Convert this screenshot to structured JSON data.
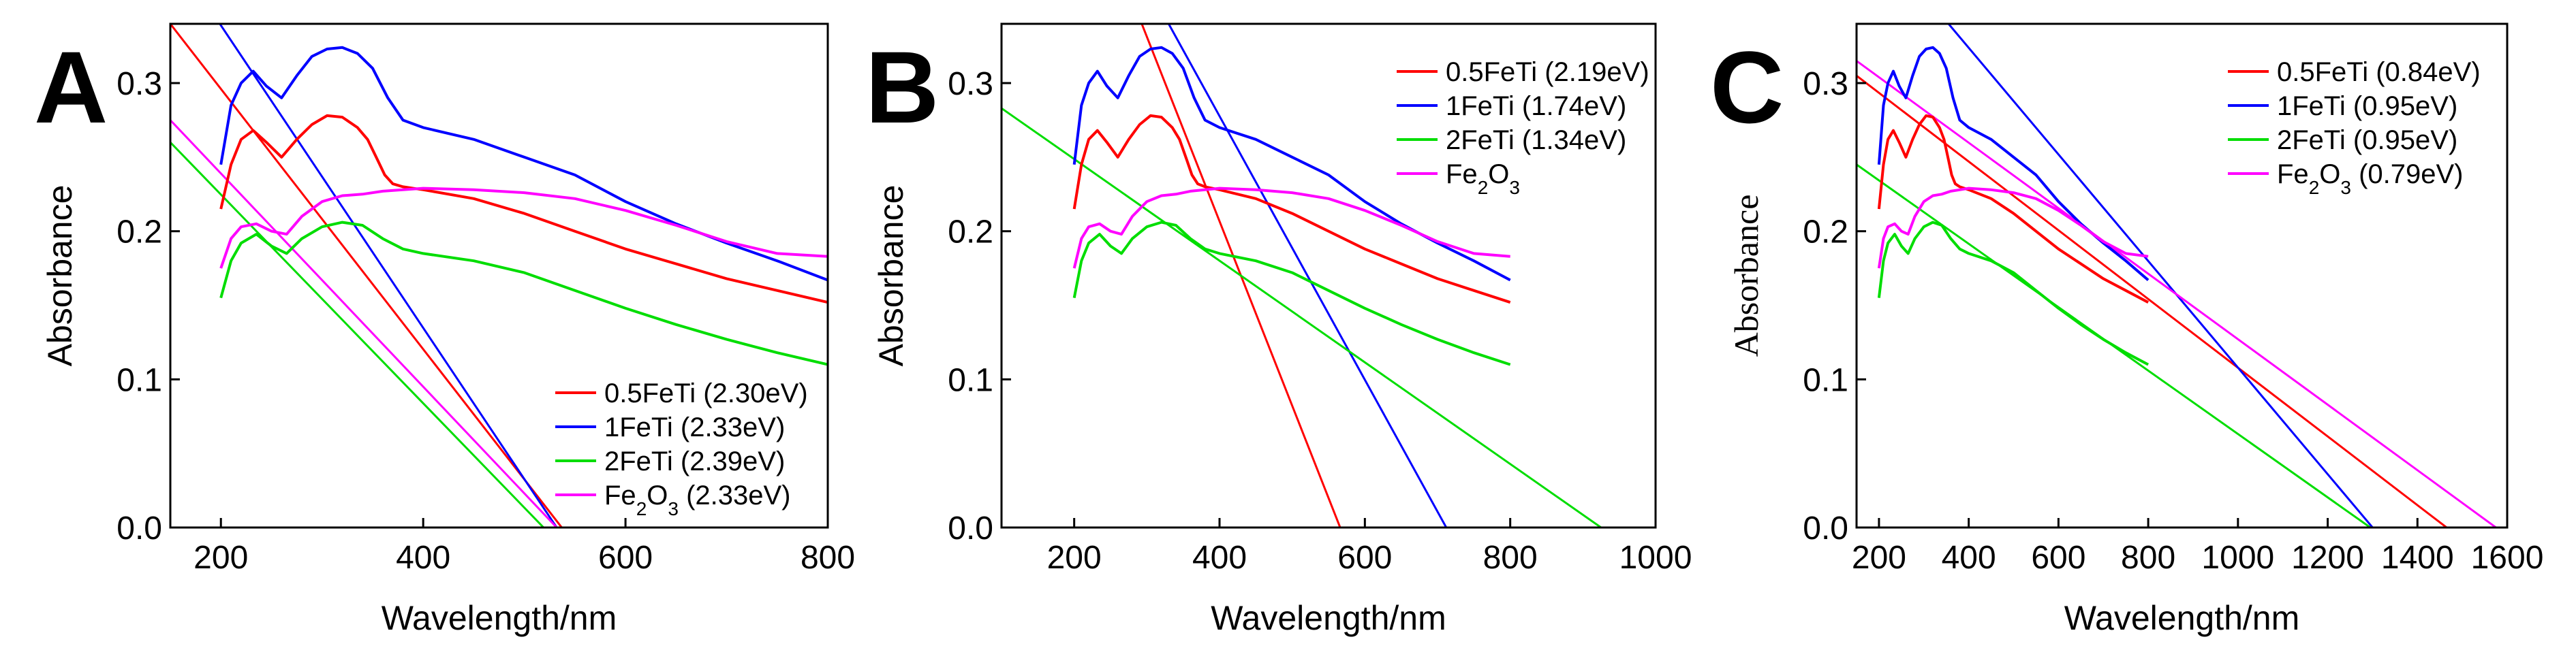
{
  "chart_data": [
    {
      "type": "line",
      "panel": "A",
      "xlabel": "Wavelength/nm",
      "ylabel": "Absorbance",
      "xlim": [
        150,
        800
      ],
      "ylim": [
        0.0,
        0.34
      ],
      "xticks": [
        200,
        400,
        600,
        800
      ],
      "yticks": [
        "0.0",
        "0.1",
        "0.2",
        "0.3"
      ],
      "legend_position": "bottom-right",
      "series": [
        {
          "name": "0.5FeTi",
          "legend": "0.5FeTi (2.30eV)",
          "color": "#ff0000",
          "x": [
            200,
            210,
            220,
            232,
            245,
            260,
            275,
            290,
            305,
            320,
            335,
            345,
            355,
            362,
            370,
            380,
            400,
            450,
            500,
            550,
            600,
            650,
            700,
            750,
            800
          ],
          "y": [
            0.215,
            0.245,
            0.262,
            0.268,
            0.26,
            0.25,
            0.262,
            0.272,
            0.278,
            0.277,
            0.27,
            0.262,
            0.248,
            0.238,
            0.232,
            0.23,
            0.228,
            0.222,
            0.212,
            0.2,
            0.188,
            0.178,
            0.168,
            0.16,
            0.152
          ]
        },
        {
          "name": "1FeTi",
          "legend": "1FeTi (2.33eV)",
          "color": "#0000ff",
          "x": [
            200,
            210,
            220,
            232,
            245,
            260,
            275,
            290,
            305,
            320,
            335,
            350,
            365,
            380,
            400,
            450,
            500,
            550,
            600,
            650,
            700,
            750,
            800
          ],
          "y": [
            0.245,
            0.285,
            0.3,
            0.308,
            0.298,
            0.29,
            0.305,
            0.318,
            0.323,
            0.324,
            0.32,
            0.31,
            0.29,
            0.275,
            0.27,
            0.262,
            0.25,
            0.238,
            0.22,
            0.205,
            0.192,
            0.18,
            0.167
          ]
        },
        {
          "name": "2FeTi",
          "legend": "2FeTi (2.39eV)",
          "color": "#00dd00",
          "x": [
            200,
            210,
            220,
            235,
            250,
            265,
            280,
            300,
            320,
            340,
            360,
            380,
            400,
            450,
            500,
            550,
            600,
            650,
            700,
            750,
            800
          ],
          "y": [
            0.155,
            0.18,
            0.192,
            0.198,
            0.19,
            0.185,
            0.195,
            0.203,
            0.206,
            0.204,
            0.195,
            0.188,
            0.185,
            0.18,
            0.172,
            0.16,
            0.148,
            0.137,
            0.127,
            0.118,
            0.11
          ]
        },
        {
          "name": "Fe2O3",
          "legend": "Fe2O3 (2.33eV)",
          "color": "#ff00ff",
          "x": [
            200,
            210,
            220,
            235,
            250,
            265,
            280,
            300,
            320,
            340,
            360,
            380,
            400,
            450,
            500,
            550,
            600,
            650,
            700,
            750,
            800
          ],
          "y": [
            0.175,
            0.195,
            0.203,
            0.205,
            0.2,
            0.198,
            0.21,
            0.22,
            0.224,
            0.225,
            0.227,
            0.228,
            0.229,
            0.228,
            0.226,
            0.222,
            0.214,
            0.204,
            0.193,
            0.185,
            0.183
          ]
        }
      ],
      "fit_lines": [
        {
          "color": "#ff0000",
          "x": [
            150,
            537
          ],
          "y": [
            0.34,
            0.0
          ]
        },
        {
          "color": "#0000ff",
          "x": [
            150,
            532
          ],
          "y": [
            0.39,
            0.0
          ]
        },
        {
          "color": "#00dd00",
          "x": [
            150,
            519
          ],
          "y": [
            0.26,
            0.0
          ]
        },
        {
          "color": "#ff00ff",
          "x": [
            150,
            532
          ],
          "y": [
            0.275,
            0.0
          ]
        }
      ]
    },
    {
      "type": "line",
      "panel": "B",
      "xlabel": "Wavelength/nm",
      "ylabel": "Absorbance",
      "xlim": [
        100,
        1000
      ],
      "ylim": [
        0.0,
        0.34
      ],
      "xticks": [
        200,
        400,
        600,
        800,
        1000
      ],
      "yticks": [
        "0.0",
        "0.1",
        "0.2",
        "0.3"
      ],
      "legend_position": "top-right",
      "series": [
        {
          "name": "0.5FeTi",
          "legend": "0.5FeTi (2.19eV)",
          "color": "#ff0000",
          "x": [
            200,
            210,
            220,
            232,
            245,
            260,
            275,
            290,
            305,
            320,
            335,
            345,
            355,
            362,
            370,
            380,
            400,
            450,
            500,
            550,
            600,
            650,
            700,
            750,
            800
          ],
          "y": [
            0.215,
            0.245,
            0.262,
            0.268,
            0.26,
            0.25,
            0.262,
            0.272,
            0.278,
            0.277,
            0.27,
            0.262,
            0.248,
            0.238,
            0.232,
            0.23,
            0.228,
            0.222,
            0.212,
            0.2,
            0.188,
            0.178,
            0.168,
            0.16,
            0.152
          ]
        },
        {
          "name": "1FeTi",
          "legend": "1FeTi (1.74eV)",
          "color": "#0000ff",
          "x": [
            200,
            210,
            220,
            232,
            245,
            260,
            275,
            290,
            305,
            320,
            335,
            350,
            365,
            380,
            400,
            450,
            500,
            550,
            600,
            650,
            700,
            750,
            800
          ],
          "y": [
            0.245,
            0.285,
            0.3,
            0.308,
            0.298,
            0.29,
            0.305,
            0.318,
            0.323,
            0.324,
            0.32,
            0.31,
            0.29,
            0.275,
            0.27,
            0.262,
            0.25,
            0.238,
            0.22,
            0.205,
            0.192,
            0.18,
            0.167
          ]
        },
        {
          "name": "2FeTi",
          "legend": "2FeTi (1.34eV)",
          "color": "#00dd00",
          "x": [
            200,
            210,
            220,
            235,
            250,
            265,
            280,
            300,
            320,
            340,
            360,
            380,
            400,
            450,
            500,
            550,
            600,
            650,
            700,
            750,
            800
          ],
          "y": [
            0.155,
            0.18,
            0.192,
            0.198,
            0.19,
            0.185,
            0.195,
            0.203,
            0.206,
            0.204,
            0.195,
            0.188,
            0.185,
            0.18,
            0.172,
            0.16,
            0.148,
            0.137,
            0.127,
            0.118,
            0.11
          ]
        },
        {
          "name": "Fe2O3",
          "legend": "Fe2O3",
          "color": "#ff00ff",
          "x": [
            200,
            210,
            220,
            235,
            250,
            265,
            280,
            300,
            320,
            340,
            360,
            380,
            400,
            450,
            500,
            550,
            600,
            650,
            700,
            750,
            800
          ],
          "y": [
            0.175,
            0.195,
            0.203,
            0.205,
            0.2,
            0.198,
            0.21,
            0.22,
            0.224,
            0.225,
            0.227,
            0.228,
            0.229,
            0.228,
            0.226,
            0.222,
            0.214,
            0.204,
            0.193,
            0.185,
            0.183
          ]
        }
      ],
      "fit_lines": [
        {
          "color": "#ff0000",
          "x": [
            293,
            566
          ],
          "y": [
            0.34,
            0.0
          ]
        },
        {
          "color": "#0000ff",
          "x": [
            330,
            712
          ],
          "y": [
            0.34,
            0.0
          ]
        },
        {
          "color": "#00dd00",
          "x": [
            100,
            925
          ],
          "y": [
            0.283,
            0.0
          ]
        }
      ]
    },
    {
      "type": "line",
      "panel": "C",
      "xlabel": "Wavelength/nm",
      "ylabel": "Absorbance",
      "xlim": [
        150,
        1600
      ],
      "ylim": [
        0.0,
        0.34
      ],
      "xticks": [
        200,
        400,
        600,
        800,
        1000,
        1200,
        1400,
        1600
      ],
      "yticks": [
        "0.0",
        "0.1",
        "0.2",
        "0.3"
      ],
      "legend_position": "top-right",
      "series": [
        {
          "name": "0.5FeTi",
          "legend": "0.5FeTi (0.84eV)",
          "color": "#ff0000",
          "x": [
            200,
            210,
            220,
            232,
            245,
            260,
            275,
            290,
            305,
            320,
            335,
            345,
            355,
            362,
            370,
            380,
            400,
            450,
            500,
            550,
            600,
            650,
            700,
            750,
            800
          ],
          "y": [
            0.215,
            0.245,
            0.262,
            0.268,
            0.26,
            0.25,
            0.262,
            0.272,
            0.278,
            0.277,
            0.27,
            0.262,
            0.248,
            0.238,
            0.232,
            0.23,
            0.228,
            0.222,
            0.212,
            0.2,
            0.188,
            0.178,
            0.168,
            0.16,
            0.152
          ]
        },
        {
          "name": "1FeTi",
          "legend": "1FeTi (0.95eV)",
          "color": "#0000ff",
          "x": [
            200,
            210,
            220,
            232,
            245,
            260,
            275,
            290,
            305,
            320,
            335,
            350,
            365,
            380,
            400,
            450,
            500,
            550,
            600,
            650,
            700,
            750,
            800
          ],
          "y": [
            0.245,
            0.285,
            0.3,
            0.308,
            0.298,
            0.29,
            0.305,
            0.318,
            0.323,
            0.324,
            0.32,
            0.31,
            0.29,
            0.275,
            0.27,
            0.262,
            0.25,
            0.238,
            0.22,
            0.205,
            0.192,
            0.18,
            0.167
          ]
        },
        {
          "name": "2FeTi",
          "legend": "2FeTi (0.95eV)",
          "color": "#00dd00",
          "x": [
            200,
            210,
            220,
            235,
            250,
            265,
            280,
            300,
            320,
            340,
            360,
            380,
            400,
            450,
            500,
            550,
            600,
            650,
            700,
            750,
            800
          ],
          "y": [
            0.155,
            0.18,
            0.192,
            0.198,
            0.19,
            0.185,
            0.195,
            0.203,
            0.206,
            0.204,
            0.195,
            0.188,
            0.185,
            0.18,
            0.172,
            0.16,
            0.148,
            0.137,
            0.127,
            0.118,
            0.11
          ]
        },
        {
          "name": "Fe2O3",
          "legend": "Fe2O3 (0.79eV)",
          "color": "#ff00ff",
          "x": [
            200,
            210,
            220,
            235,
            250,
            265,
            280,
            300,
            320,
            340,
            360,
            380,
            400,
            450,
            500,
            550,
            600,
            650,
            700,
            750,
            800
          ],
          "y": [
            0.175,
            0.195,
            0.203,
            0.205,
            0.2,
            0.198,
            0.21,
            0.22,
            0.224,
            0.225,
            0.227,
            0.228,
            0.229,
            0.228,
            0.226,
            0.222,
            0.214,
            0.204,
            0.193,
            0.185,
            0.183
          ]
        }
      ],
      "fit_lines": [
        {
          "color": "#ff0000",
          "x": [
            150,
            1465
          ],
          "y": [
            0.305,
            0.0
          ]
        },
        {
          "color": "#0000ff",
          "x": [
            355,
            1300
          ],
          "y": [
            0.34,
            0.0
          ]
        },
        {
          "color": "#00dd00",
          "x": [
            150,
            1295
          ],
          "y": [
            0.245,
            0.0
          ]
        },
        {
          "color": "#ff00ff",
          "x": [
            150,
            1575
          ],
          "y": [
            0.315,
            0.0
          ]
        }
      ]
    }
  ]
}
